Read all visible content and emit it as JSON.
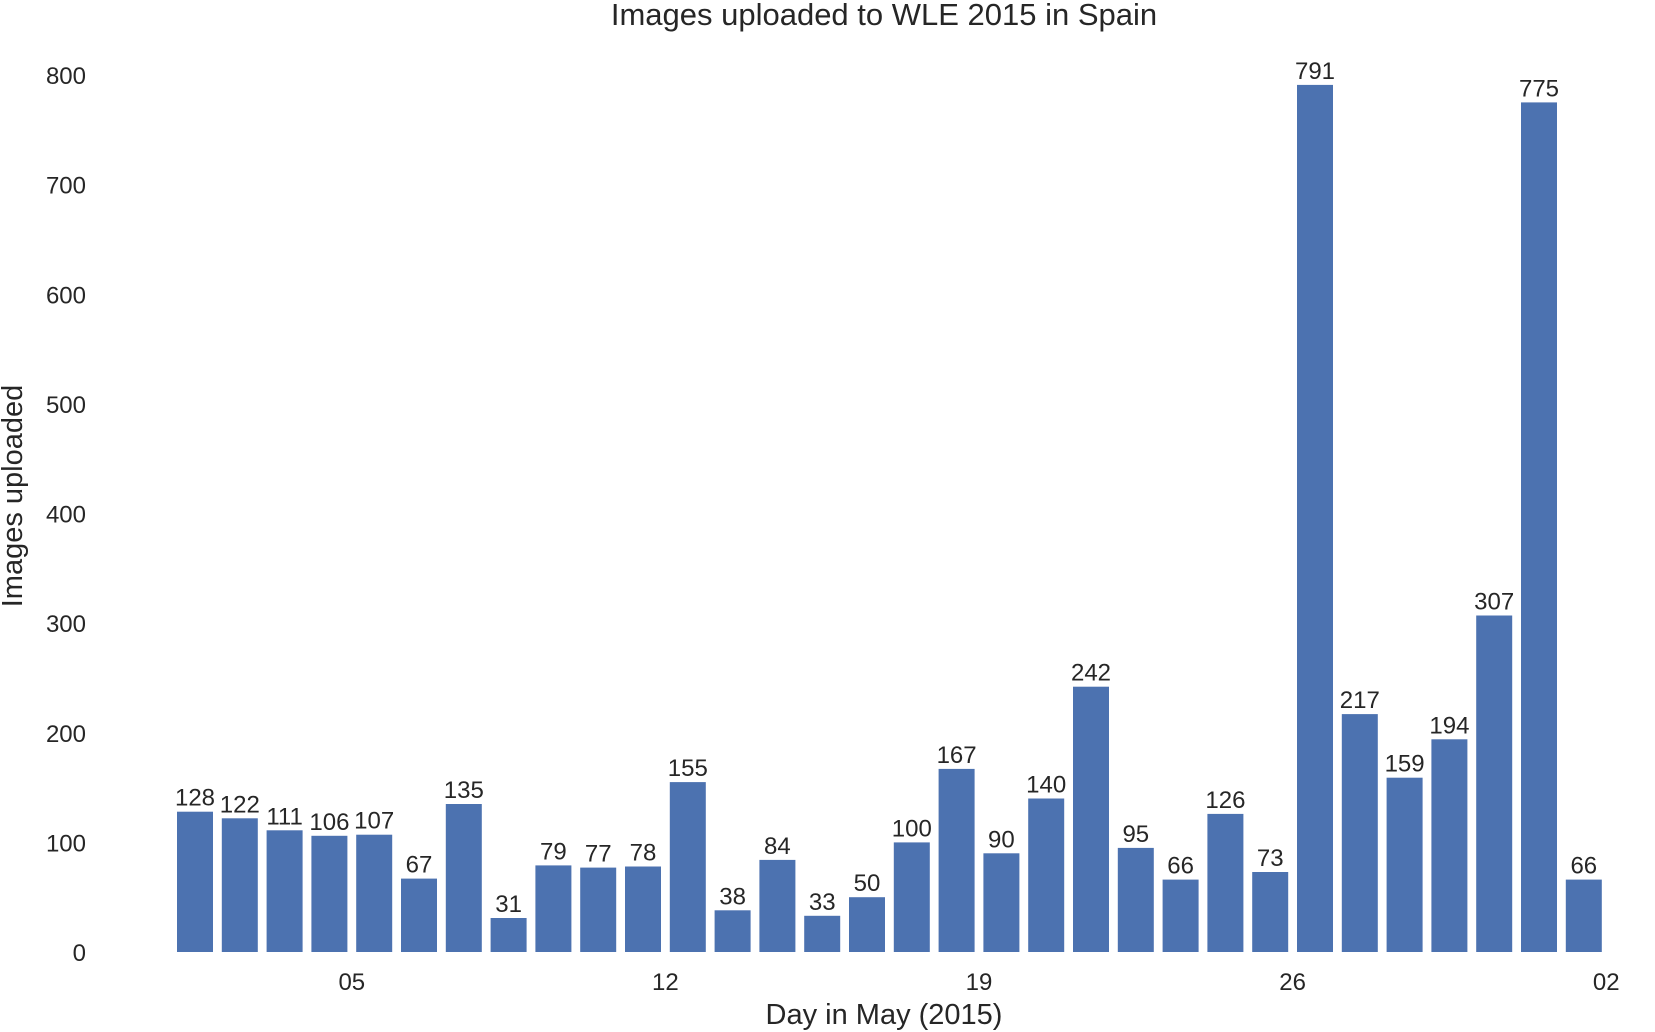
{
  "chart_data": {
    "type": "bar",
    "title": "Images uploaded to WLE 2015 in Spain",
    "xlabel": "Day in May (2015)",
    "ylabel": "Images uploaded",
    "categories": [
      "2015-05-01",
      "2015-05-02",
      "2015-05-03",
      "2015-05-04",
      "2015-05-05",
      "2015-05-06",
      "2015-05-07",
      "2015-05-08",
      "2015-05-09",
      "2015-05-10",
      "2015-05-11",
      "2015-05-12",
      "2015-05-13",
      "2015-05-14",
      "2015-05-15",
      "2015-05-16",
      "2015-05-17",
      "2015-05-18",
      "2015-05-19",
      "2015-05-20",
      "2015-05-21",
      "2015-05-22",
      "2015-05-23",
      "2015-05-24",
      "2015-05-25",
      "2015-05-26",
      "2015-05-27",
      "2015-05-28",
      "2015-05-29",
      "2015-05-30",
      "2015-05-31",
      "2015-06-01"
    ],
    "values": [
      128,
      122,
      111,
      106,
      107,
      67,
      135,
      31,
      79,
      77,
      78,
      155,
      38,
      84,
      33,
      50,
      100,
      167,
      90,
      140,
      242,
      95,
      66,
      126,
      73,
      791,
      217,
      159,
      194,
      307,
      775,
      66
    ],
    "data_labels": [
      "128",
      "122",
      "111",
      "106",
      "107",
      "67",
      "135",
      "31",
      "79",
      "77",
      "78",
      "155",
      "38",
      "84",
      "33",
      "50",
      "100",
      "167",
      "90",
      "140",
      "242",
      "95",
      "66",
      "126",
      "73",
      "791",
      "217",
      "159",
      "194",
      "307",
      "775",
      "66"
    ],
    "ylim": [
      0,
      800
    ],
    "yticks": [
      0,
      100,
      200,
      300,
      400,
      500,
      600,
      700,
      800
    ],
    "ytick_labels": [
      "0",
      "100",
      "200",
      "300",
      "400",
      "500",
      "600",
      "700",
      "800"
    ],
    "xticks": [
      {
        "date": "2015-05-05",
        "label": "05"
      },
      {
        "date": "2015-05-12",
        "label": "12"
      },
      {
        "date": "2015-05-19",
        "label": "19"
      },
      {
        "date": "2015-05-26",
        "label": "26"
      },
      {
        "date": "2015-06-02",
        "label": "02"
      }
    ],
    "bar_color": "#4c72b0",
    "grid": false,
    "legend": "none"
  }
}
